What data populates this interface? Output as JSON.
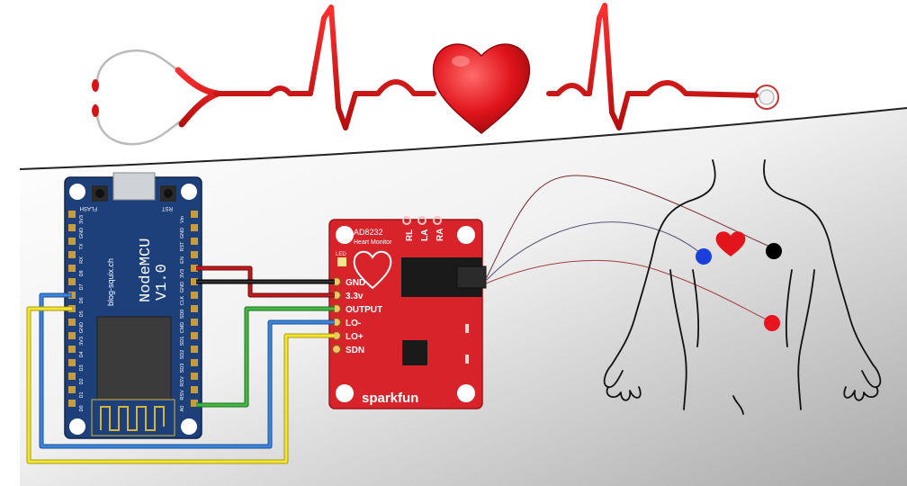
{
  "nodemcu": {
    "title": "NodeMCU",
    "version": "V1.0",
    "site": "blog-squix.ch",
    "flash": "FLASH",
    "rst": "RST",
    "pins_left": [
      "A0",
      "RSV",
      "RSV",
      "SD3",
      "SD2",
      "SD1",
      "CMD",
      "SD0",
      "CLK",
      "GND",
      "3V3",
      "EN",
      "RST",
      "GND",
      "Vin"
    ],
    "pins_right": [
      "D0",
      "D1",
      "D2",
      "D3",
      "D4",
      "3V3",
      "GND",
      "D5",
      "D6",
      "D7",
      "D8",
      "RX",
      "TX",
      "GND",
      "3V3"
    ]
  },
  "ad8232": {
    "chip": "AD8232",
    "subtitle": "Heart Monitor",
    "led": "LED",
    "electrodes": [
      "RL",
      "LA",
      "RA"
    ],
    "pins": [
      "GND",
      "3.3v",
      "OUTPUT",
      "LO-",
      "LO+",
      "SDN"
    ],
    "brand": "sparkfun"
  },
  "colors": {
    "board_blue": "#1d3f7a",
    "board_red": "#d8232a",
    "wire_black": "#111111",
    "wire_red": "#b0181b",
    "wire_green": "#2e9d2e",
    "wire_blue": "#2e72c8",
    "wire_yellow": "#f2e12a",
    "ecg_red": "#e01212",
    "electrode_black": "#000000",
    "electrode_blue": "#1b3fdc",
    "electrode_red": "#e8141e"
  },
  "icons": [
    "stethoscope-icon",
    "heart-icon",
    "ecg-trace",
    "body-outline",
    "heart-outline-icon"
  ]
}
